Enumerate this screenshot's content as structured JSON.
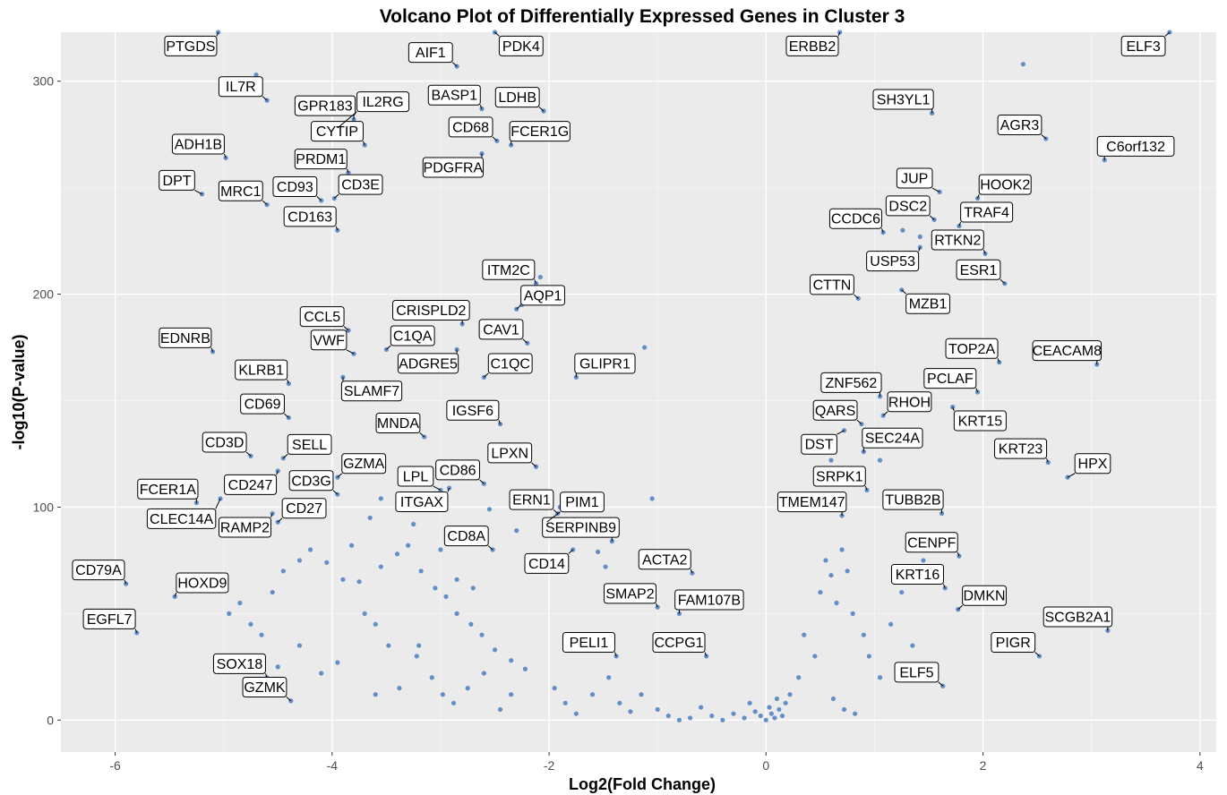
{
  "chart_data": {
    "type": "scatter",
    "title": "Volcano Plot of Differentially Expressed Genes in Cluster 3",
    "xlabel": "Log2(Fold Change)",
    "ylabel": "-log10(P-value)",
    "xlim": [
      -6.5,
      4.15
    ],
    "ylim": [
      -15,
      323
    ],
    "x_ticks": [
      -6,
      -4,
      -2,
      0,
      2,
      4
    ],
    "x_tick_labels": [
      "-6",
      "-4",
      "-2",
      "0",
      "2",
      "4"
    ],
    "y_ticks": [
      0,
      100,
      200,
      300
    ],
    "y_tick_labels": [
      "0",
      "100",
      "200",
      "300"
    ],
    "grid": true,
    "point_color": "#4a7fc1",
    "labeled_genes": [
      {
        "gene": "PTGDS",
        "x": -5.05,
        "y": 323
      },
      {
        "gene": "AIF1",
        "x": -2.85,
        "y": 307
      },
      {
        "gene": "PDK4",
        "x": -2.5,
        "y": 323
      },
      {
        "gene": "ERBB2",
        "x": 0.68,
        "y": 323
      },
      {
        "gene": "ELF3",
        "x": 3.72,
        "y": 323
      },
      {
        "gene": "IL7R",
        "x": -4.6,
        "y": 291
      },
      {
        "gene": "BASP1",
        "x": -2.62,
        "y": 287
      },
      {
        "gene": "GPR183",
        "x": -3.8,
        "y": 282
      },
      {
        "gene": "LDHB",
        "x": -2.05,
        "y": 286
      },
      {
        "gene": "CD68",
        "x": -2.48,
        "y": 272
      },
      {
        "gene": "CYTIP",
        "x": -3.7,
        "y": 270
      },
      {
        "gene": "IL2RG",
        "x": -3.95,
        "y": 278
      },
      {
        "gene": "ADH1B",
        "x": -4.98,
        "y": 264
      },
      {
        "gene": "PRDM1",
        "x": -3.85,
        "y": 257
      },
      {
        "gene": "FCER1G",
        "x": -2.35,
        "y": 270
      },
      {
        "gene": "PDGFRA",
        "x": -2.62,
        "y": 266
      },
      {
        "gene": "SH3YL1",
        "x": 1.53,
        "y": 285
      },
      {
        "gene": "AGR3",
        "x": 2.58,
        "y": 273
      },
      {
        "gene": "JUP",
        "x": 1.6,
        "y": 248
      },
      {
        "gene": "HOOK2",
        "x": 1.95,
        "y": 245
      },
      {
        "gene": "C6orf132",
        "x": 3.12,
        "y": 263
      },
      {
        "gene": "DPT",
        "x": -5.2,
        "y": 247
      },
      {
        "gene": "CD93",
        "x": -4.1,
        "y": 244
      },
      {
        "gene": "CD3E",
        "x": -3.98,
        "y": 245
      },
      {
        "gene": "MRC1",
        "x": -4.6,
        "y": 242
      },
      {
        "gene": "DSC2",
        "x": 1.55,
        "y": 235
      },
      {
        "gene": "TRAF4",
        "x": 1.78,
        "y": 232
      },
      {
        "gene": "CD163",
        "x": -3.95,
        "y": 230
      },
      {
        "gene": "CCDC6",
        "x": 1.08,
        "y": 229
      },
      {
        "gene": "USP53",
        "x": 1.42,
        "y": 222
      },
      {
        "gene": "RTKN2",
        "x": 2.02,
        "y": 219
      },
      {
        "gene": "CRISPLD2",
        "x": -2.8,
        "y": 186
      },
      {
        "gene": "ITM2C",
        "x": -2.12,
        "y": 205
      },
      {
        "gene": "CTTN",
        "x": 0.85,
        "y": 198
      },
      {
        "gene": "MZB1",
        "x": 1.25,
        "y": 202
      },
      {
        "gene": "ESR1",
        "x": 2.2,
        "y": 205
      },
      {
        "gene": "AQP1",
        "x": -2.3,
        "y": 193
      },
      {
        "gene": "EDNRB",
        "x": -5.1,
        "y": 173
      },
      {
        "gene": "CCL5",
        "x": -3.85,
        "y": 183
      },
      {
        "gene": "C1QA",
        "x": -3.5,
        "y": 174
      },
      {
        "gene": "ZNF562",
        "x": 1.05,
        "y": 152
      },
      {
        "gene": "CAV1",
        "x": -2.2,
        "y": 177
      },
      {
        "gene": "TOP2A",
        "x": 2.15,
        "y": 168
      },
      {
        "gene": "CEACAM8",
        "x": 3.05,
        "y": 167
      },
      {
        "gene": "KLRB1",
        "x": -4.4,
        "y": 158
      },
      {
        "gene": "VWF",
        "x": -3.8,
        "y": 172
      },
      {
        "gene": "ADGRE5",
        "x": -2.85,
        "y": 174
      },
      {
        "gene": "RHOH",
        "x": 1.08,
        "y": 143
      },
      {
        "gene": "SLAMF7",
        "x": -3.9,
        "y": 161
      },
      {
        "gene": "C1QC",
        "x": -2.6,
        "y": 161
      },
      {
        "gene": "GLIPR1",
        "x": -1.75,
        "y": 161
      },
      {
        "gene": "PCLAF",
        "x": 1.95,
        "y": 154
      },
      {
        "gene": "CD69",
        "x": -4.4,
        "y": 142
      },
      {
        "gene": "QARS",
        "x": 0.88,
        "y": 139
      },
      {
        "gene": "MNDA",
        "x": -3.15,
        "y": 133
      },
      {
        "gene": "KRT15",
        "x": 1.72,
        "y": 147
      },
      {
        "gene": "CD3D",
        "x": -4.75,
        "y": 124
      },
      {
        "gene": "SELL",
        "x": -4.45,
        "y": 123
      },
      {
        "gene": "IGSF6",
        "x": -2.45,
        "y": 139
      },
      {
        "gene": "LPXN",
        "x": -2.12,
        "y": 119
      },
      {
        "gene": "DST",
        "x": 0.72,
        "y": 136
      },
      {
        "gene": "SEC24A",
        "x": 0.9,
        "y": 126
      },
      {
        "gene": "KRT23",
        "x": 2.6,
        "y": 121
      },
      {
        "gene": "GZMA",
        "x": -3.95,
        "y": 114
      },
      {
        "gene": "FCER1A",
        "x": -5.25,
        "y": 102
      },
      {
        "gene": "CD247",
        "x": -4.5,
        "y": 117
      },
      {
        "gene": "HPX",
        "x": 2.78,
        "y": 114
      },
      {
        "gene": "CD86",
        "x": -2.6,
        "y": 111
      },
      {
        "gene": "ERN1",
        "x": -1.92,
        "y": 97
      },
      {
        "gene": "SRPK1",
        "x": 0.93,
        "y": 108
      },
      {
        "gene": "LPL",
        "x": -3.0,
        "y": 108
      },
      {
        "gene": "RAMP2",
        "x": -4.55,
        "y": 97
      },
      {
        "gene": "CLEC14A",
        "x": -5.03,
        "y": 104
      },
      {
        "gene": "TMEM147",
        "x": 0.7,
        "y": 96
      },
      {
        "gene": "ITGAX",
        "x": -2.92,
        "y": 109
      },
      {
        "gene": "SERPINB9",
        "x": -1.42,
        "y": 84
      },
      {
        "gene": "TUBB2B",
        "x": 1.62,
        "y": 97
      },
      {
        "gene": "PIM1",
        "x": -2.02,
        "y": 93
      },
      {
        "gene": "CD3G",
        "x": -3.95,
        "y": 106
      },
      {
        "gene": "CD27",
        "x": -4.5,
        "y": 93
      },
      {
        "gene": "CD14",
        "x": -1.78,
        "y": 80
      },
      {
        "gene": "CD8A",
        "x": -2.52,
        "y": 80
      },
      {
        "gene": "CD79A",
        "x": -5.9,
        "y": 64
      },
      {
        "gene": "ACTA2",
        "x": -0.68,
        "y": 69
      },
      {
        "gene": "CENPF",
        "x": 1.78,
        "y": 77
      },
      {
        "gene": "KRT16",
        "x": 1.65,
        "y": 62
      },
      {
        "gene": "SMAP2",
        "x": -1.0,
        "y": 53
      },
      {
        "gene": "FAM107B",
        "x": -0.8,
        "y": 50
      },
      {
        "gene": "HOXD9",
        "x": -5.45,
        "y": 58
      },
      {
        "gene": "SCGB2A1",
        "x": 3.15,
        "y": 42
      },
      {
        "gene": "DMKN",
        "x": 1.77,
        "y": 52
      },
      {
        "gene": "EGFL7",
        "x": -5.8,
        "y": 41
      },
      {
        "gene": "PELI1",
        "x": -1.38,
        "y": 30
      },
      {
        "gene": "CCPG1",
        "x": -0.55,
        "y": 30
      },
      {
        "gene": "PIGR",
        "x": 2.52,
        "y": 30
      },
      {
        "gene": "SOX18",
        "x": -4.6,
        "y": 20
      },
      {
        "gene": "ELF5",
        "x": 1.63,
        "y": 16
      },
      {
        "gene": "GZMK",
        "x": -4.38,
        "y": 9
      }
    ],
    "other_points": [
      [
        -4.7,
        303
      ],
      [
        2.37,
        308
      ],
      [
        -2.08,
        208
      ],
      [
        -2.25,
        195
      ],
      [
        -1.12,
        175
      ],
      [
        1.26,
        230
      ],
      [
        1.42,
        227
      ],
      [
        0.6,
        122
      ],
      [
        1.05,
        122
      ],
      [
        -1.05,
        104
      ],
      [
        -1.9,
        100
      ],
      [
        -2.55,
        99
      ],
      [
        -2.3,
        89
      ],
      [
        -1.55,
        79
      ],
      [
        -1.48,
        72
      ],
      [
        -4.55,
        60
      ],
      [
        -4.45,
        70
      ],
      [
        -4.3,
        75
      ],
      [
        -4.2,
        80
      ],
      [
        -4.05,
        74
      ],
      [
        -3.9,
        66
      ],
      [
        -3.75,
        65
      ],
      [
        -3.55,
        72
      ],
      [
        -3.4,
        78
      ],
      [
        -3.3,
        82
      ],
      [
        -3.18,
        70
      ],
      [
        -3.05,
        62
      ],
      [
        -2.95,
        58
      ],
      [
        -2.85,
        50
      ],
      [
        -2.72,
        45
      ],
      [
        -2.62,
        40
      ],
      [
        -2.5,
        33
      ],
      [
        -2.35,
        28
      ],
      [
        -2.22,
        24
      ],
      [
        -4.85,
        55
      ],
      [
        -4.75,
        45
      ],
      [
        -4.65,
        40
      ],
      [
        -4.5,
        25
      ],
      [
        -4.3,
        35
      ],
      [
        -4.1,
        22
      ],
      [
        -3.95,
        27
      ],
      [
        -3.7,
        50
      ],
      [
        -3.6,
        45
      ],
      [
        -3.48,
        35
      ],
      [
        -3.38,
        15
      ],
      [
        -3.22,
        30
      ],
      [
        -3.08,
        20
      ],
      [
        -2.98,
        12
      ],
      [
        -2.88,
        8
      ],
      [
        -2.75,
        15
      ],
      [
        -2.6,
        22
      ],
      [
        -2.45,
        5
      ],
      [
        -2.35,
        12
      ],
      [
        -1.95,
        15
      ],
      [
        -1.85,
        8
      ],
      [
        -1.75,
        3
      ],
      [
        -1.6,
        12
      ],
      [
        -1.45,
        20
      ],
      [
        -1.35,
        8
      ],
      [
        -1.25,
        4
      ],
      [
        -1.15,
        12
      ],
      [
        -1.0,
        5
      ],
      [
        -0.9,
        2
      ],
      [
        -0.8,
        0
      ],
      [
        -0.7,
        1
      ],
      [
        -0.6,
        6
      ],
      [
        -0.5,
        2
      ],
      [
        -0.4,
        0
      ],
      [
        -0.3,
        3
      ],
      [
        -0.2,
        1
      ],
      [
        -0.15,
        8
      ],
      [
        -0.1,
        4
      ],
      [
        -0.05,
        2
      ],
      [
        0.0,
        0
      ],
      [
        0.03,
        6
      ],
      [
        0.05,
        3
      ],
      [
        0.08,
        1
      ],
      [
        0.1,
        10
      ],
      [
        0.12,
        5
      ],
      [
        0.15,
        2
      ],
      [
        0.18,
        8
      ],
      [
        0.22,
        12
      ],
      [
        0.3,
        20
      ],
      [
        0.35,
        40
      ],
      [
        0.45,
        30
      ],
      [
        0.5,
        60
      ],
      [
        0.55,
        75
      ],
      [
        0.6,
        68
      ],
      [
        0.65,
        55
      ],
      [
        0.7,
        80
      ],
      [
        0.75,
        70
      ],
      [
        0.8,
        50
      ],
      [
        0.9,
        40
      ],
      [
        0.95,
        30
      ],
      [
        1.05,
        20
      ],
      [
        1.15,
        45
      ],
      [
        1.25,
        60
      ],
      [
        1.35,
        35
      ],
      [
        1.45,
        75
      ],
      [
        1.55,
        25
      ],
      [
        0.62,
        10
      ],
      [
        0.72,
        5
      ],
      [
        0.82,
        3
      ],
      [
        -3.82,
        82
      ],
      [
        -3.65,
        95
      ],
      [
        -3.55,
        104
      ],
      [
        -3.25,
        92
      ],
      [
        -3.0,
        80
      ],
      [
        -2.85,
        66
      ],
      [
        -2.7,
        62
      ],
      [
        -4.8,
        30
      ],
      [
        -4.95,
        50
      ],
      [
        -3.6,
        12
      ],
      [
        -3.2,
        35
      ]
    ]
  }
}
